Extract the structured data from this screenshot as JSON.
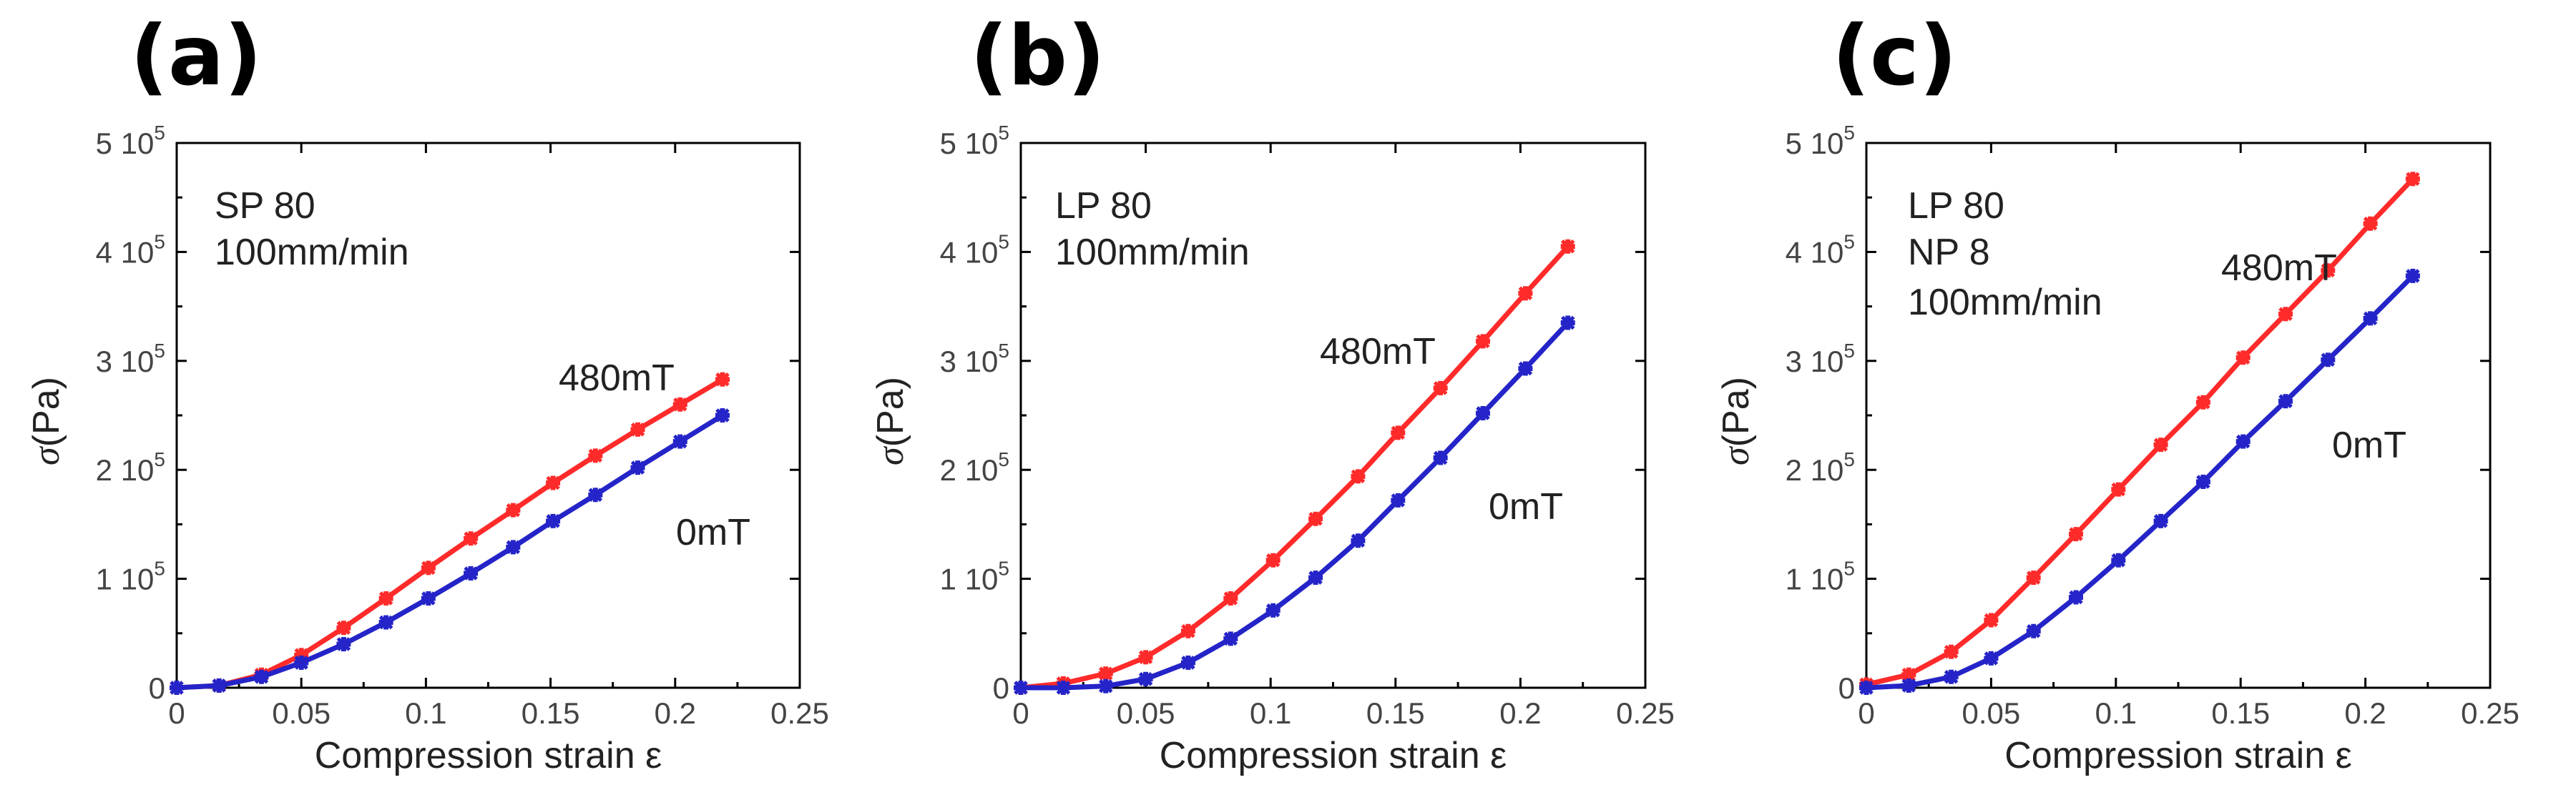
{
  "chart_data": [
    {
      "type": "line",
      "panel": "(a)",
      "annotations": [
        "SP 80",
        "100mm/min"
      ],
      "xlabel": "Compression strain ε",
      "ylabel_symbol": "σ",
      "ylabel_unit": "(Pa)",
      "xlim": [
        0,
        0.25
      ],
      "ylim": [
        0,
        500000
      ],
      "xticks": [
        0,
        0.05,
        0.1,
        0.15,
        0.2,
        0.25
      ],
      "xtick_labels": [
        "0",
        "0.05",
        "0.1",
        "0.15",
        "0.2",
        "0.25"
      ],
      "yticks": [
        0,
        100000,
        200000,
        300000,
        400000,
        500000
      ],
      "ytick_labels": [
        {
          "mantissa": "0",
          "exp": ""
        },
        {
          "mantissa": "1 10",
          "exp": "5"
        },
        {
          "mantissa": "2 10",
          "exp": "5"
        },
        {
          "mantissa": "3 10",
          "exp": "5"
        },
        {
          "mantissa": "4 10",
          "exp": "5"
        },
        {
          "mantissa": "5 10",
          "exp": "5"
        }
      ],
      "series": [
        {
          "name": "480mT",
          "color": "#ff2a2a",
          "x": [
            0,
            0.017,
            0.034,
            0.05,
            0.067,
            0.084,
            0.101,
            0.118,
            0.135,
            0.151,
            0.168,
            0.185,
            0.202,
            0.219
          ],
          "y": [
            0,
            2000,
            12000,
            30000,
            55000,
            82000,
            110000,
            137000,
            163000,
            188000,
            213000,
            237000,
            260000,
            283000
          ]
        },
        {
          "name": "0mT",
          "color": "#2424c8",
          "x": [
            0,
            0.017,
            0.034,
            0.05,
            0.067,
            0.084,
            0.101,
            0.118,
            0.135,
            0.151,
            0.168,
            0.185,
            0.202,
            0.219
          ],
          "y": [
            0,
            2000,
            10000,
            23000,
            40000,
            60000,
            82000,
            105000,
            129000,
            153000,
            177000,
            202000,
            226000,
            250000
          ]
        }
      ],
      "series_labels": [
        "480mT",
        "0mT"
      ]
    },
    {
      "type": "line",
      "panel": "(b)",
      "annotations": [
        "LP 80",
        "100mm/min"
      ],
      "xlabel": "Compression strain ε",
      "ylabel_symbol": "σ",
      "ylabel_unit": "(Pa)",
      "xlim": [
        0,
        0.25
      ],
      "ylim": [
        0,
        500000
      ],
      "xticks": [
        0,
        0.05,
        0.1,
        0.15,
        0.2,
        0.25
      ],
      "xtick_labels": [
        "0",
        "0.05",
        "0.1",
        "0.15",
        "0.2",
        "0.25"
      ],
      "yticks": [
        0,
        100000,
        200000,
        300000,
        400000,
        500000
      ],
      "ytick_labels": [
        {
          "mantissa": "0",
          "exp": ""
        },
        {
          "mantissa": "1 10",
          "exp": "5"
        },
        {
          "mantissa": "2 10",
          "exp": "5"
        },
        {
          "mantissa": "3 10",
          "exp": "5"
        },
        {
          "mantissa": "4 10",
          "exp": "5"
        },
        {
          "mantissa": "5 10",
          "exp": "5"
        }
      ],
      "series": [
        {
          "name": "480mT",
          "color": "#ff2a2a",
          "x": [
            0,
            0.017,
            0.034,
            0.05,
            0.067,
            0.084,
            0.101,
            0.118,
            0.135,
            0.151,
            0.168,
            0.185,
            0.202,
            0.219
          ],
          "y": [
            0,
            4000,
            13000,
            28000,
            52000,
            82000,
            117000,
            155000,
            194000,
            234000,
            275000,
            318000,
            362000,
            405000
          ]
        },
        {
          "name": "0mT",
          "color": "#2424c8",
          "x": [
            0,
            0.017,
            0.034,
            0.05,
            0.067,
            0.084,
            0.101,
            0.118,
            0.135,
            0.151,
            0.168,
            0.185,
            0.202,
            0.219
          ],
          "y": [
            0,
            0,
            1500,
            8000,
            23000,
            45000,
            71000,
            101000,
            135000,
            172000,
            211000,
            252000,
            293000,
            335000
          ]
        }
      ],
      "series_labels": [
        "480mT",
        "0mT"
      ]
    },
    {
      "type": "line",
      "panel": "(c)",
      "annotations": [
        "LP 80",
        "NP 8",
        "100mm/min"
      ],
      "xlabel": "Compression strain ε",
      "ylabel_symbol": "σ",
      "ylabel_unit": "(Pa)",
      "xlim": [
        0,
        0.25
      ],
      "ylim": [
        0,
        500000
      ],
      "xticks": [
        0,
        0.05,
        0.1,
        0.15,
        0.2,
        0.25
      ],
      "xtick_labels": [
        "0",
        "0.05",
        "0.1",
        "0.15",
        "0.2",
        "0.25"
      ],
      "yticks": [
        0,
        100000,
        200000,
        300000,
        400000,
        500000
      ],
      "ytick_labels": [
        {
          "mantissa": "0",
          "exp": ""
        },
        {
          "mantissa": "1 10",
          "exp": "5"
        },
        {
          "mantissa": "2 10",
          "exp": "5"
        },
        {
          "mantissa": "3 10",
          "exp": "5"
        },
        {
          "mantissa": "4 10",
          "exp": "5"
        },
        {
          "mantissa": "5 10",
          "exp": "5"
        }
      ],
      "series": [
        {
          "name": "480mT",
          "color": "#ff2a2a",
          "x": [
            0,
            0.017,
            0.034,
            0.05,
            0.067,
            0.084,
            0.101,
            0.118,
            0.135,
            0.151,
            0.168,
            0.185,
            0.202,
            0.219
          ],
          "y": [
            3000,
            12000,
            33000,
            62000,
            101000,
            141000,
            182000,
            223000,
            262000,
            303000,
            343000,
            383000,
            426000,
            467000
          ]
        },
        {
          "name": "0mT",
          "color": "#2424c8",
          "x": [
            0,
            0.017,
            0.034,
            0.05,
            0.067,
            0.084,
            0.101,
            0.118,
            0.135,
            0.151,
            0.168,
            0.185,
            0.202,
            0.219
          ],
          "y": [
            0,
            2000,
            10000,
            27000,
            52000,
            83000,
            117000,
            153000,
            189000,
            226000,
            263000,
            301000,
            339000,
            378000
          ]
        }
      ],
      "series_labels": [
        "480mT",
        "0mT"
      ]
    }
  ]
}
